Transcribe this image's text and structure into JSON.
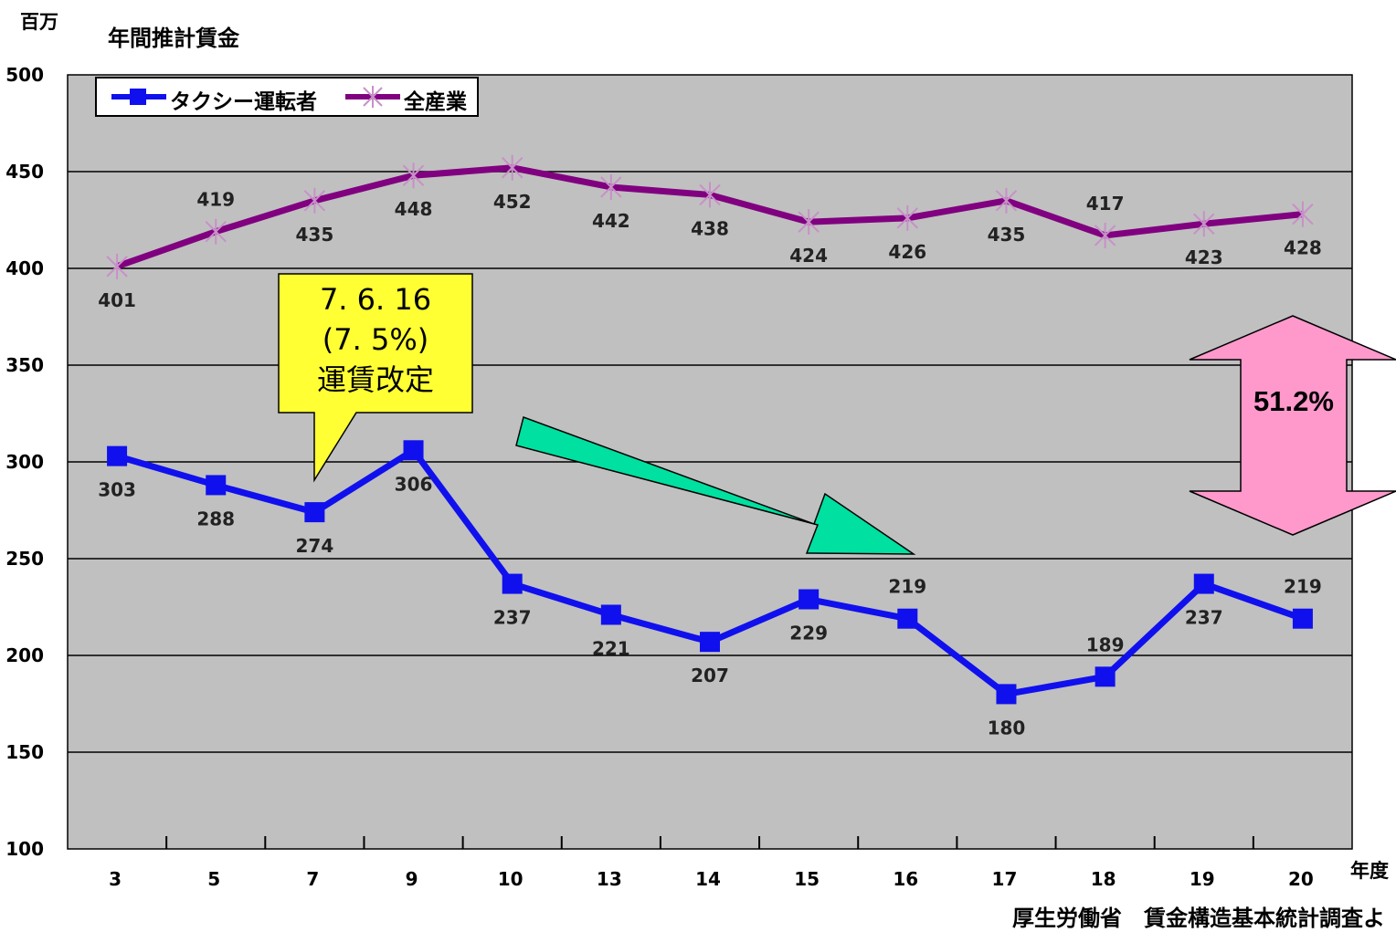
{
  "header": {
    "unit_label": "百万",
    "title": "年間推計賃金"
  },
  "x_unit_label": "年度",
  "source": "厚生労働省　賃金構造基本統計調査よ",
  "legend": {
    "items": [
      "タクシー運転者",
      "全産業"
    ]
  },
  "callout": {
    "lines": [
      "7. 6. 16",
      "(7. 5%)",
      "運賃改定"
    ]
  },
  "gap_label": "51.2%",
  "colors": {
    "plot_background": "#c0c0c0",
    "taxi_series": "#1010ee",
    "all_industry_series": "#800080",
    "callout_fill": "#ffff33",
    "trend_arrow": "#00e0a0",
    "gap_arrow": "#ff99cc"
  },
  "chart_data": {
    "type": "line",
    "title": "年間推計賃金",
    "xlabel": "年度",
    "ylabel": "百万",
    "categories": [
      "3",
      "5",
      "7",
      "9",
      "10",
      "13",
      "14",
      "15",
      "16",
      "17",
      "18",
      "19",
      "20"
    ],
    "ylim": [
      100,
      500
    ],
    "yticks": [
      100,
      150,
      200,
      250,
      300,
      350,
      400,
      450,
      500
    ],
    "grid": true,
    "legend_position": "top-left",
    "series": [
      {
        "name": "タクシー運転者",
        "marker": "square",
        "values": [
          303,
          288,
          274,
          306,
          237,
          221,
          207,
          229,
          219,
          180,
          189,
          237,
          219
        ],
        "label_position": [
          "below",
          "below",
          "below",
          "below",
          "below",
          "below",
          "below",
          "below",
          "above",
          "below",
          "above",
          "below",
          "above"
        ]
      },
      {
        "name": "全産業",
        "marker": "star",
        "values": [
          401,
          419,
          435,
          448,
          452,
          442,
          438,
          424,
          426,
          435,
          417,
          423,
          428
        ],
        "label_position": [
          "below",
          "above",
          "below",
          "below",
          "below",
          "below",
          "below",
          "below",
          "below",
          "below",
          "above",
          "below",
          "below"
        ]
      }
    ]
  }
}
